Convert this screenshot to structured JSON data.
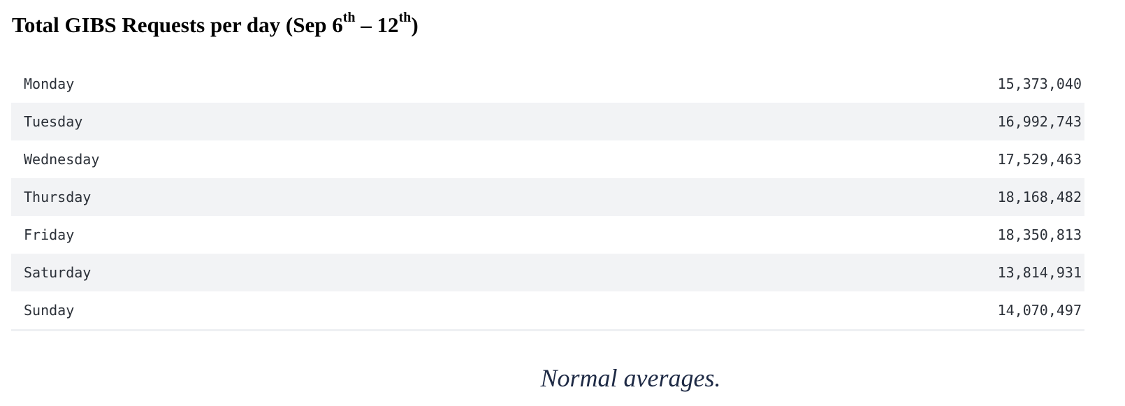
{
  "title": {
    "prefix": "Total GIBS Requests per day (Sep 6",
    "sup1": "th",
    "middle": " – 12",
    "sup2": "th",
    "suffix": ")"
  },
  "rows": [
    {
      "day": "Monday",
      "count": "15,373,040"
    },
    {
      "day": "Tuesday",
      "count": "16,992,743"
    },
    {
      "day": "Wednesday",
      "count": "17,529,463"
    },
    {
      "day": "Thursday",
      "count": "18,168,482"
    },
    {
      "day": "Friday",
      "count": "18,350,813"
    },
    {
      "day": "Saturday",
      "count": "13,814,931"
    },
    {
      "day": "Sunday",
      "count": "14,070,497"
    }
  ],
  "caption": "Normal averages."
}
